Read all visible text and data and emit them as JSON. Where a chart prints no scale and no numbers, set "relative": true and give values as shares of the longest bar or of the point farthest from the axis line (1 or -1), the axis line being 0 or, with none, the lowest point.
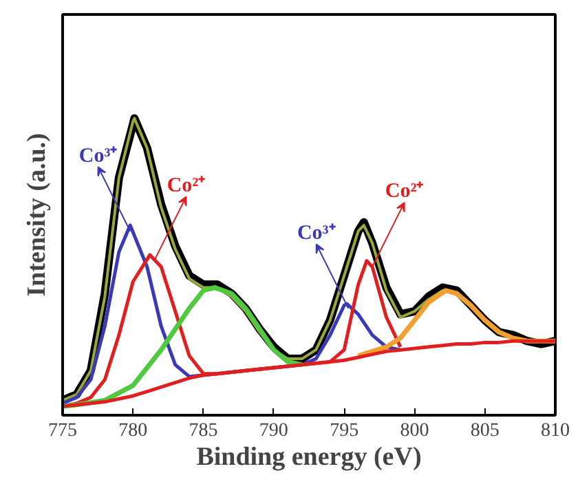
{
  "chart_data": {
    "type": "line",
    "xlabel": "Binding energy (eV)",
    "ylabel": "Intensity (a.u.)",
    "relative": true,
    "xlim": [
      775,
      810
    ],
    "xticks": [
      775,
      780,
      785,
      790,
      795,
      800,
      805,
      810
    ],
    "tick_labels": "x",
    "series": [
      {
        "color": "#000000",
        "x": [
          775,
          776,
          777,
          778,
          779,
          780,
          780.1,
          781,
          782,
          783,
          784,
          785,
          786,
          787,
          788,
          789,
          790,
          791,
          792,
          793,
          794,
          795,
          796,
          796.4,
          797,
          798,
          799,
          800,
          801,
          802,
          803,
          804,
          805,
          806,
          807,
          808,
          809,
          810
        ],
        "values": [
          0.05,
          0.07,
          0.15,
          0.41,
          0.8,
          0.98,
          1.0,
          0.9,
          0.71,
          0.57,
          0.47,
          0.44,
          0.44,
          0.41,
          0.36,
          0.29,
          0.23,
          0.19,
          0.19,
          0.22,
          0.32,
          0.47,
          0.62,
          0.65,
          0.58,
          0.43,
          0.34,
          0.35,
          0.4,
          0.43,
          0.42,
          0.37,
          0.32,
          0.28,
          0.27,
          0.25,
          0.24,
          0.25
        ]
      },
      {
        "color": "#9aa83a",
        "x": [
          775,
          776,
          777,
          778,
          779,
          780,
          780.1,
          781,
          782,
          783,
          784,
          785,
          786,
          787,
          788,
          789,
          790,
          791,
          792,
          793,
          794,
          795,
          796,
          796.4,
          797,
          798,
          799,
          800,
          801,
          802,
          803,
          804,
          805,
          806,
          807,
          808
        ],
        "values": [
          0.05,
          0.07,
          0.15,
          0.4,
          0.8,
          0.99,
          1.0,
          0.9,
          0.7,
          0.56,
          0.46,
          0.43,
          0.43,
          0.4,
          0.35,
          0.28,
          0.22,
          0.19,
          0.19,
          0.22,
          0.32,
          0.47,
          0.62,
          0.64,
          0.58,
          0.42,
          0.33,
          0.35,
          0.39,
          0.42,
          0.41,
          0.37,
          0.32,
          0.28,
          0.26,
          0.25
        ]
      },
      {
        "color": "#3a3ab8",
        "x": [
          775,
          776,
          777,
          778,
          779,
          779.8,
          781,
          782,
          783,
          784,
          785,
          786,
          788,
          790,
          792,
          793,
          794,
          795,
          795.2,
          796,
          797,
          798,
          799
        ],
        "values": [
          0.04,
          0.06,
          0.12,
          0.3,
          0.55,
          0.64,
          0.5,
          0.3,
          0.17,
          0.13,
          0.135,
          0.14,
          0.15,
          0.16,
          0.17,
          0.19,
          0.27,
          0.37,
          0.375,
          0.34,
          0.27,
          0.23,
          0.22
        ]
      },
      {
        "color": "#e02020",
        "x": [
          775,
          776,
          777,
          778,
          779,
          780,
          781.2,
          782,
          783,
          784,
          785,
          786,
          788,
          790,
          792,
          794,
          795,
          796,
          796.6,
          797,
          798,
          799
        ],
        "values": [
          0.03,
          0.04,
          0.06,
          0.12,
          0.27,
          0.45,
          0.54,
          0.5,
          0.35,
          0.2,
          0.14,
          0.14,
          0.15,
          0.16,
          0.17,
          0.18,
          0.22,
          0.44,
          0.52,
          0.5,
          0.33,
          0.23
        ]
      },
      {
        "color": "#50c840",
        "x": [
          775,
          776,
          778,
          780,
          782,
          784,
          785,
          785.8,
          787,
          788,
          789,
          790,
          791,
          792
        ],
        "values": [
          0.03,
          0.035,
          0.05,
          0.1,
          0.22,
          0.36,
          0.42,
          0.43,
          0.41,
          0.36,
          0.29,
          0.22,
          0.18,
          0.17
        ]
      },
      {
        "color": "#f0a030",
        "x": [
          796,
          798,
          799,
          800,
          801,
          802.2,
          803,
          804,
          805,
          806,
          807,
          808,
          810
        ],
        "values": [
          0.2,
          0.23,
          0.26,
          0.32,
          0.38,
          0.42,
          0.41,
          0.37,
          0.32,
          0.28,
          0.26,
          0.25,
          0.25
        ]
      },
      {
        "color": "#e02020",
        "x": [
          775,
          776,
          777,
          778,
          779,
          780,
          781,
          782,
          783,
          784,
          785,
          786,
          788,
          790,
          792,
          794,
          795,
          796,
          797,
          798,
          799,
          800,
          801,
          802,
          803,
          804,
          805,
          806,
          807,
          808,
          809,
          810
        ],
        "values": [
          0.03,
          0.035,
          0.04,
          0.045,
          0.055,
          0.065,
          0.08,
          0.095,
          0.11,
          0.125,
          0.135,
          0.14,
          0.15,
          0.16,
          0.17,
          0.18,
          0.185,
          0.195,
          0.205,
          0.215,
          0.22,
          0.225,
          0.23,
          0.235,
          0.24,
          0.24,
          0.245,
          0.245,
          0.25,
          0.25,
          0.25,
          0.25
        ]
      }
    ],
    "annotations": [
      {
        "text": "Co³⁺",
        "x": 779.8,
        "y": 0.62
      },
      {
        "text": "Co²⁺",
        "x": 781.5,
        "y": 0.52
      },
      {
        "text": "Co³⁺",
        "x": 795.3,
        "y": 0.36
      },
      {
        "text": "Co²⁺",
        "x": 797,
        "y": 0.5
      }
    ]
  }
}
